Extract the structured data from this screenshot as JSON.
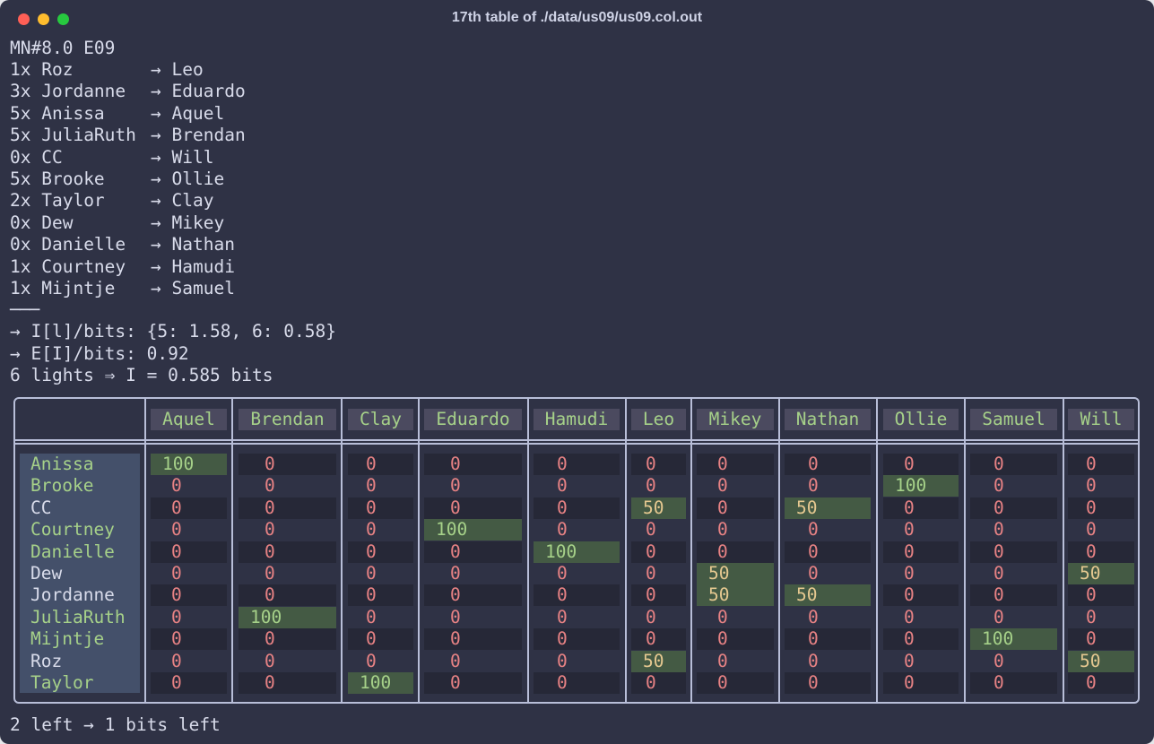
{
  "window": {
    "title": "17th table of ./data/us09/us09.col.out"
  },
  "header_line": "MN#8.0 E09",
  "matches": [
    {
      "count": "1x",
      "left": "Roz",
      "arrow": "→",
      "right": "Leo"
    },
    {
      "count": "3x",
      "left": "Jordanne",
      "arrow": "→",
      "right": "Eduardo"
    },
    {
      "count": "5x",
      "left": "Anissa",
      "arrow": "→",
      "right": "Aquel"
    },
    {
      "count": "5x",
      "left": "JuliaRuth",
      "arrow": "→",
      "right": "Brendan"
    },
    {
      "count": "0x",
      "left": "CC",
      "arrow": "→",
      "right": "Will"
    },
    {
      "count": "5x",
      "left": "Brooke",
      "arrow": "→",
      "right": "Ollie"
    },
    {
      "count": "2x",
      "left": "Taylor",
      "arrow": "→",
      "right": "Clay"
    },
    {
      "count": "0x",
      "left": "Dew",
      "arrow": "→",
      "right": "Mikey"
    },
    {
      "count": "0x",
      "left": "Danielle",
      "arrow": "→",
      "right": "Nathan"
    },
    {
      "count": "1x",
      "left": "Courtney",
      "arrow": "→",
      "right": "Hamudi"
    },
    {
      "count": "1x",
      "left": "Mijntje",
      "arrow": "→",
      "right": "Samuel"
    }
  ],
  "separator": "───",
  "info_lines": [
    "→ I[l]/bits: {5: 1.58, 6: 0.58}",
    "→ E[I]/bits: 0.92",
    "6 lights ⇒ I = 0.585 bits"
  ],
  "table": {
    "columns": [
      "Aquel",
      "Brendan",
      "Clay",
      "Eduardo",
      "Hamudi",
      "Leo",
      "Mikey",
      "Nathan",
      "Ollie",
      "Samuel",
      "Will"
    ],
    "rows": [
      {
        "name": "Anissa",
        "highlight": true,
        "values": [
          "100",
          "0",
          "0",
          "0",
          "0",
          "0",
          "0",
          "0",
          "0",
          "0",
          "0"
        ]
      },
      {
        "name": "Brooke",
        "highlight": true,
        "values": [
          "0",
          "0",
          "0",
          "0",
          "0",
          "0",
          "0",
          "0",
          "100",
          "0",
          "0"
        ]
      },
      {
        "name": "CC",
        "highlight": false,
        "values": [
          "0",
          "0",
          "0",
          "0",
          "0",
          "50",
          "0",
          "50",
          "0",
          "0",
          "0"
        ]
      },
      {
        "name": "Courtney",
        "highlight": true,
        "values": [
          "0",
          "0",
          "0",
          "100",
          "0",
          "0",
          "0",
          "0",
          "0",
          "0",
          "0"
        ]
      },
      {
        "name": "Danielle",
        "highlight": true,
        "values": [
          "0",
          "0",
          "0",
          "0",
          "100",
          "0",
          "0",
          "0",
          "0",
          "0",
          "0"
        ]
      },
      {
        "name": "Dew",
        "highlight": false,
        "values": [
          "0",
          "0",
          "0",
          "0",
          "0",
          "0",
          "50",
          "0",
          "0",
          "0",
          "50"
        ]
      },
      {
        "name": "Jordanne",
        "highlight": false,
        "values": [
          "0",
          "0",
          "0",
          "0",
          "0",
          "0",
          "50",
          "50",
          "0",
          "0",
          "0"
        ]
      },
      {
        "name": "JuliaRuth",
        "highlight": true,
        "values": [
          "0",
          "100",
          "0",
          "0",
          "0",
          "0",
          "0",
          "0",
          "0",
          "0",
          "0"
        ]
      },
      {
        "name": "Mijntje",
        "highlight": true,
        "values": [
          "0",
          "0",
          "0",
          "0",
          "0",
          "0",
          "0",
          "0",
          "0",
          "100",
          "0"
        ]
      },
      {
        "name": "Roz",
        "highlight": false,
        "values": [
          "0",
          "0",
          "0",
          "0",
          "0",
          "50",
          "0",
          "0",
          "0",
          "0",
          "50"
        ]
      },
      {
        "name": "Taylor",
        "highlight": true,
        "values": [
          "0",
          "0",
          "100",
          "0",
          "0",
          "0",
          "0",
          "0",
          "0",
          "0",
          "0"
        ]
      }
    ]
  },
  "footer_line": "2 left → 1 bits left",
  "colors": {
    "background": "#2f3245",
    "text": "#d8dbea",
    "green": "#a6d189",
    "red": "#e78284",
    "yellow": "#e5c890",
    "cell_highlight": "#445a44"
  }
}
